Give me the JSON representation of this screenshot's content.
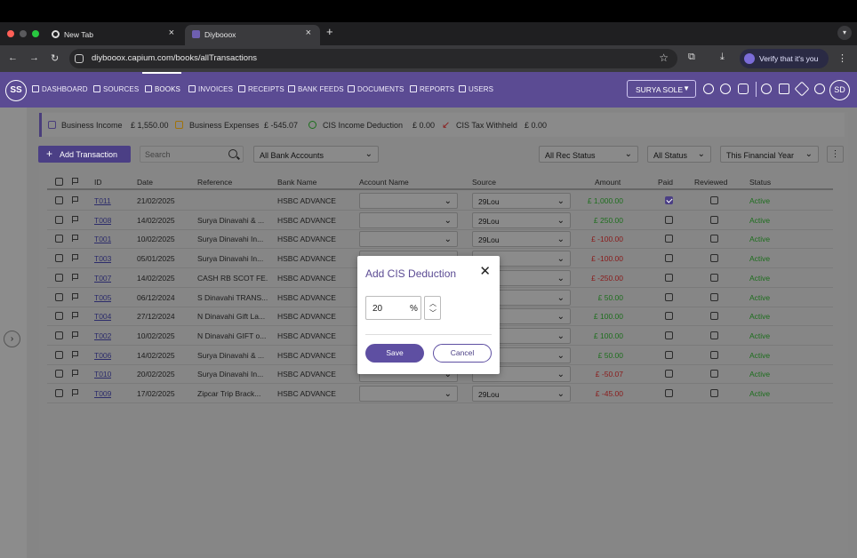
{
  "browser": {
    "tabs": [
      {
        "title": "New Tab",
        "close": "×"
      },
      {
        "title": "Diybooox",
        "close": "×"
      }
    ],
    "new_tab": "+",
    "url": "diybooox.capium.com/books/allTransactions",
    "verify_label": "Verify that it's you"
  },
  "nav": {
    "logo": "SS",
    "items": [
      "DASHBOARD",
      "SOURCES",
      "BOOKS",
      "INVOICES",
      "RECEIPTS",
      "BANK FEEDS",
      "DOCUMENTS",
      "REPORTS",
      "USERS"
    ],
    "active": "BOOKS",
    "company": "SURYA SOLE",
    "avatar": "SD"
  },
  "summary": {
    "business_income_label": "Business Income",
    "business_income_value": "£ 1,550.00",
    "business_expenses_label": "Business Expenses",
    "business_expenses_value": "£ -545.07",
    "cis_income_label": "CIS Income Deduction",
    "cis_income_value": "£ 0.00",
    "cis_tax_label": "CIS Tax Withheld",
    "cis_tax_value": "£ 0.00"
  },
  "toolbar": {
    "add_label": "Add Transaction",
    "search_placeholder": "Search",
    "bank_accounts": "All Bank Accounts",
    "rec_status": "All Rec Status",
    "status": "All Status",
    "financial_year": "This Financial Year"
  },
  "table": {
    "headers": [
      "ID",
      "Date",
      "Reference",
      "Bank Name",
      "Account Name",
      "Source",
      "Amount",
      "Paid",
      "Reviewed",
      "Status"
    ],
    "rows": [
      {
        "id": "T011",
        "date": "21/02/2025",
        "reference": "",
        "bank": "HSBC ADVANCE",
        "source": "29Lou",
        "amount": "£ 1,000.00",
        "positive": true,
        "paid": true,
        "reviewed": false,
        "status": "Active"
      },
      {
        "id": "T008",
        "date": "14/02/2025",
        "reference": "Surya Dinavahi & ...",
        "bank": "HSBC ADVANCE",
        "source": "29Lou",
        "amount": "£ 250.00",
        "positive": true,
        "paid": false,
        "reviewed": false,
        "status": "Active"
      },
      {
        "id": "T001",
        "date": "10/02/2025",
        "reference": "Surya Dinavahi In...",
        "bank": "HSBC ADVANCE",
        "source": "29Lou",
        "amount": "£ -100.00",
        "positive": false,
        "paid": false,
        "reviewed": false,
        "status": "Active"
      },
      {
        "id": "T003",
        "date": "05/01/2025",
        "reference": "Surya Dinavahi In...",
        "bank": "HSBC ADVANCE",
        "source": "",
        "amount": "£ -100.00",
        "positive": false,
        "paid": false,
        "reviewed": false,
        "status": "Active"
      },
      {
        "id": "T007",
        "date": "14/02/2025",
        "reference": "CASH RB SCOT FE...",
        "bank": "HSBC ADVANCE",
        "source": "",
        "amount": "£ -250.00",
        "positive": false,
        "paid": false,
        "reviewed": false,
        "status": "Active"
      },
      {
        "id": "T005",
        "date": "06/12/2024",
        "reference": "S Dinavahi TRANS...",
        "bank": "HSBC ADVANCE",
        "source": "",
        "amount": "£ 50.00",
        "positive": true,
        "paid": false,
        "reviewed": false,
        "status": "Active"
      },
      {
        "id": "T004",
        "date": "27/12/2024",
        "reference": "N Dinavahi Gift La...",
        "bank": "HSBC ADVANCE",
        "source": "",
        "amount": "£ 100.00",
        "positive": true,
        "paid": false,
        "reviewed": false,
        "status": "Active"
      },
      {
        "id": "T002",
        "date": "10/02/2025",
        "reference": "N Dinavahi GIFT o...",
        "bank": "HSBC ADVANCE",
        "source": "",
        "amount": "£ 100.00",
        "positive": true,
        "paid": false,
        "reviewed": false,
        "status": "Active"
      },
      {
        "id": "T006",
        "date": "14/02/2025",
        "reference": "Surya Dinavahi & ...",
        "bank": "HSBC ADVANCE",
        "source": "",
        "amount": "£ 50.00",
        "positive": true,
        "paid": false,
        "reviewed": false,
        "status": "Active"
      },
      {
        "id": "T010",
        "date": "20/02/2025",
        "reference": "Surya Dinavahi In...",
        "bank": "HSBC ADVANCE",
        "source": "",
        "amount": "£ -50.07",
        "positive": false,
        "paid": false,
        "reviewed": false,
        "status": "Active"
      },
      {
        "id": "T009",
        "date": "17/02/2025",
        "reference": "Zipcar Trip Brack...",
        "bank": "HSBC ADVANCE",
        "source": "29Lou",
        "amount": "£ -45.00",
        "positive": false,
        "paid": false,
        "reviewed": false,
        "status": "Active"
      }
    ]
  },
  "modal": {
    "title": "Add CIS Deduction",
    "value": "20",
    "unit": "%",
    "save_label": "Save",
    "cancel_label": "Cancel"
  },
  "colors": {
    "brand": "#5b4b93",
    "positive": "#1d6e1d",
    "negative": "#8a1a1a"
  }
}
